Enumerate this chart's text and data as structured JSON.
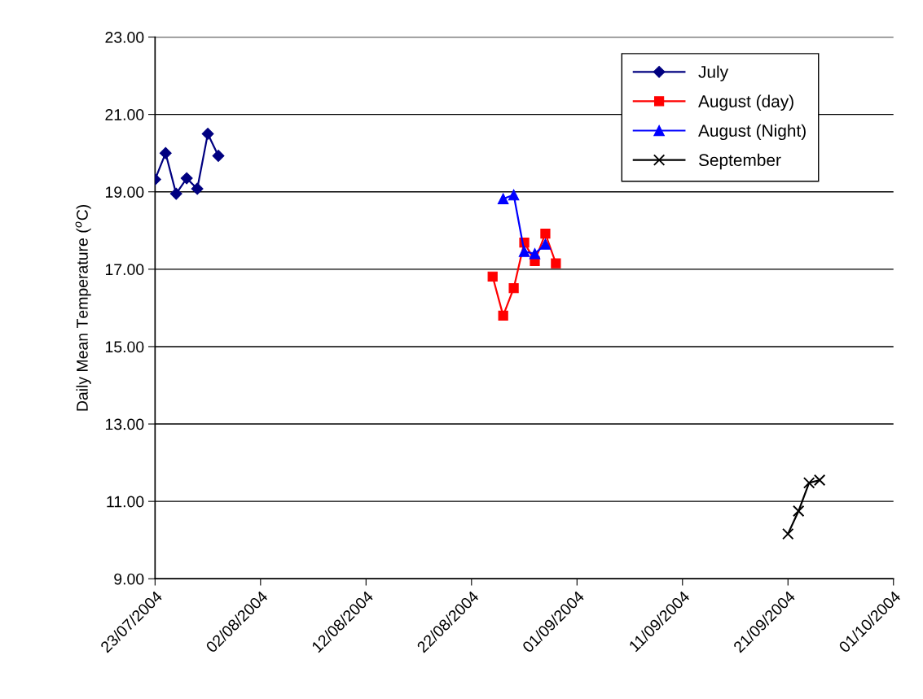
{
  "chart_data": {
    "type": "line",
    "ylabel": "Daily Mean Temperature ($^{o}$C)",
    "xlim": [
      "2004-07-23",
      "2004-10-01"
    ],
    "xticks": [
      {
        "value": "2004-07-23",
        "label": "23/07/2004"
      },
      {
        "value": "2004-08-02",
        "label": "02/08/2004"
      },
      {
        "value": "2004-08-12",
        "label": "12/08/2004"
      },
      {
        "value": "2004-08-22",
        "label": "22/08/2004"
      },
      {
        "value": "2004-09-01",
        "label": "01/09/2004"
      },
      {
        "value": "2004-09-11",
        "label": "11/09/2004"
      },
      {
        "value": "2004-09-21",
        "label": "21/09/2004"
      },
      {
        "value": "2004-10-01",
        "label": "01/10/2004"
      }
    ],
    "ylim": [
      9,
      23
    ],
    "yticks": [
      {
        "value": 9,
        "label": "9.00"
      },
      {
        "value": 11,
        "label": "11.00"
      },
      {
        "value": 13,
        "label": "13.00"
      },
      {
        "value": 15,
        "label": "15.00"
      },
      {
        "value": 17,
        "label": "17.00"
      },
      {
        "value": 19,
        "label": "19.00"
      },
      {
        "value": 21,
        "label": "21.00"
      },
      {
        "value": 23,
        "label": "23.00"
      }
    ],
    "grid": "y",
    "legend": "top right",
    "line_style": "solid",
    "series": [
      {
        "name": "July",
        "color": "#000080",
        "marker": "diamond",
        "x": [
          "2004-07-23",
          "2004-07-24",
          "2004-07-25",
          "2004-07-26",
          "2004-07-27",
          "2004-07-28",
          "2004-07-29"
        ],
        "values": [
          19.32,
          20.0,
          18.95,
          19.35,
          19.08,
          20.5,
          19.93
        ]
      },
      {
        "name": "August (day)",
        "color": "#ff0000",
        "marker": "square",
        "x": [
          "2004-08-24",
          "2004-08-25",
          "2004-08-26",
          "2004-08-27",
          "2004-08-28",
          "2004-08-29",
          "2004-08-30"
        ],
        "values": [
          16.81,
          15.8,
          16.51,
          17.69,
          17.21,
          17.92,
          17.15
        ]
      },
      {
        "name": "August (Night)",
        "color": "#0000ff",
        "marker": "triangle",
        "x": [
          "2004-08-25",
          "2004-08-26",
          "2004-08-27",
          "2004-08-28",
          "2004-08-29"
        ],
        "values": [
          18.82,
          18.92,
          17.46,
          17.4,
          17.65
        ]
      },
      {
        "name": "September",
        "color": "#000000",
        "marker": "cross",
        "x": [
          "2004-09-21",
          "2004-09-22",
          "2004-09-23",
          "2004-09-24"
        ],
        "values": [
          10.16,
          10.75,
          11.48,
          11.55
        ]
      }
    ]
  }
}
